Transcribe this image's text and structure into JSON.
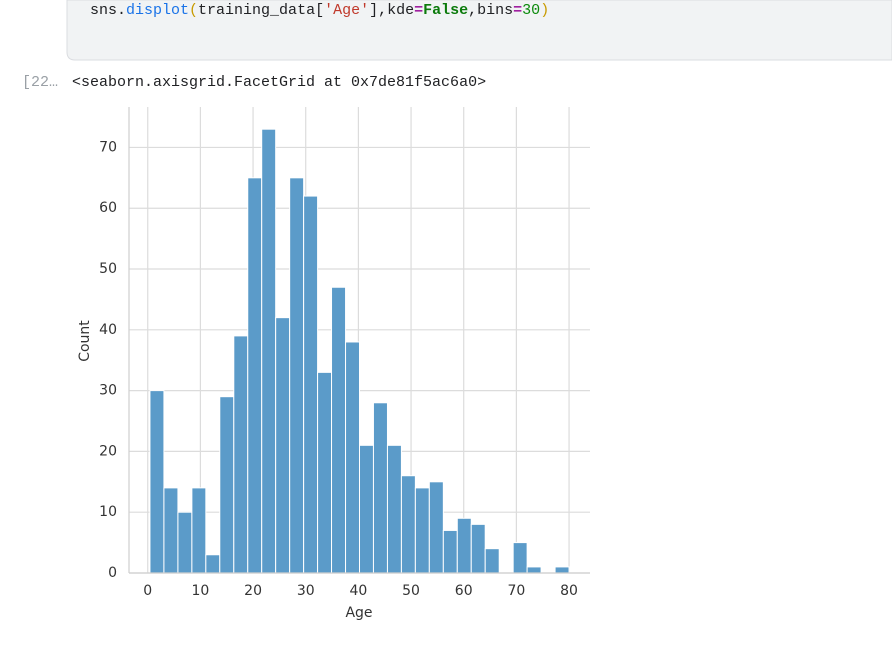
{
  "code_cell": {
    "tokens": [
      "sns.",
      "displot",
      "(",
      "training_data[",
      "'Age'",
      "],kde",
      "=",
      "False",
      ",bins",
      "=",
      "30",
      ")"
    ]
  },
  "output": {
    "prompt": "[22…",
    "text": "<seaborn.axisgrid.FacetGrid at 0x7de81f5ac6a0>"
  },
  "chart_data": {
    "type": "histogram",
    "x_label": "Age",
    "y_label": "Count",
    "bins": [
      0.42,
      3.07,
      5.73,
      8.38,
      11.03,
      13.68,
      16.34,
      18.99,
      21.64,
      24.29,
      26.95,
      29.6,
      32.25,
      34.9,
      37.56,
      40.21,
      42.86,
      45.52,
      48.17,
      50.82,
      53.47,
      56.13,
      58.78,
      61.43,
      64.08,
      66.74,
      69.39,
      72.04,
      74.69,
      77.35,
      80
    ],
    "values": [
      30,
      14,
      10,
      14,
      3,
      29,
      39,
      65,
      73,
      42,
      65,
      62,
      33,
      47,
      38,
      21,
      28,
      21,
      16,
      14,
      15,
      7,
      9,
      8,
      4,
      0,
      5,
      1,
      0,
      1
    ],
    "color": "#5b9bc9",
    "xlim": [
      -3.56,
      83.98
    ],
    "xticks": [
      0,
      10,
      20,
      30,
      40,
      50,
      60,
      70,
      80
    ],
    "ylim": [
      0,
      76.65
    ],
    "yticks": [
      0,
      10,
      20,
      30,
      40,
      50,
      60,
      70
    ],
    "grid": true
  }
}
